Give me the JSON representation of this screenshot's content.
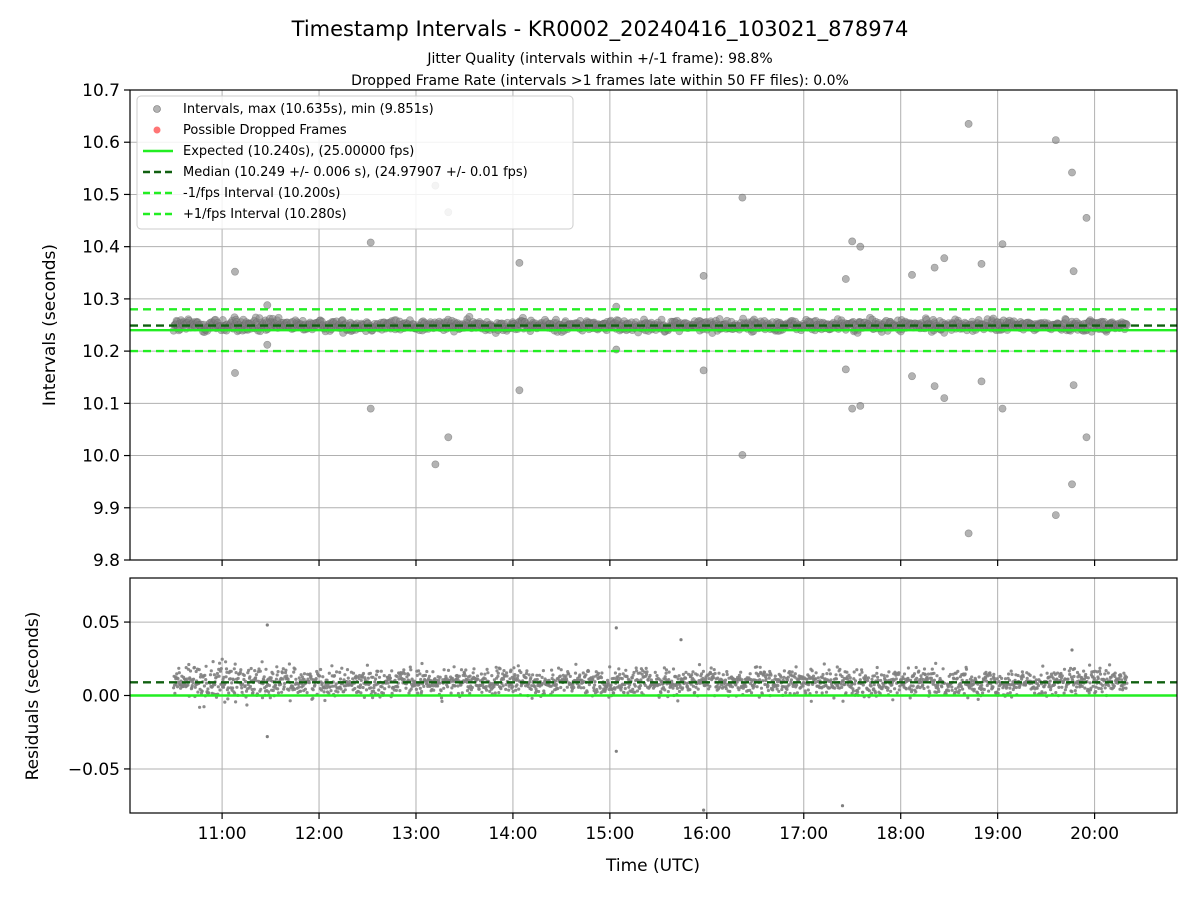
{
  "title": "Timestamp Intervals - KR0002_20240416_103021_878974",
  "subtitle_1": "Jitter Quality (intervals within +/-1 frame): 98.8%",
  "subtitle_2": "Dropped Frame Rate (intervals >1 frames late within 50 FF files): 0.0%",
  "colors": {
    "points": "#808080",
    "dropped": "#ff6666",
    "expected": "#22ee22",
    "median": "#106010",
    "grid": "#b0b0b0"
  },
  "chart_data": [
    {
      "type": "scatter",
      "xlabel": "",
      "ylabel": "Intervals (seconds)",
      "ylim": [
        9.8,
        10.7
      ],
      "y_ticks": [
        "9.8",
        "9.9",
        "10.0",
        "10.1",
        "10.2",
        "10.3",
        "10.4",
        "10.5",
        "10.6",
        "10.7"
      ],
      "x_range_hours": [
        10.05,
        20.85
      ],
      "grid": true,
      "legend_placement": "top-left",
      "legend": [
        "Intervals, max (10.635s), min (9.851s)",
        "Possible Dropped Frames",
        "Expected (10.240s), (25.00000 fps)",
        "Median (10.249 +/- 0.006 s), (24.97907 +/- 0.01 fps)",
        "-1/fps Interval (10.200s)",
        "+1/fps Interval (10.280s)"
      ],
      "reference_lines": {
        "expected": 10.24,
        "median": 10.249,
        "minus_one_fps": 10.2,
        "plus_one_fps": 10.28
      },
      "series": [
        {
          "name": "Intervals, max (10.635s), min (9.851s)",
          "band": {
            "x_start": "10:30",
            "x_end": "20:20",
            "center": 10.249,
            "spread": 0.01
          },
          "outliers": [
            [
              "11:08",
              10.352
            ],
            [
              "11:08",
              10.158
            ],
            [
              "11:28",
              10.288
            ],
            [
              "11:28",
              10.212
            ],
            [
              "12:32",
              10.408
            ],
            [
              "12:32",
              10.09
            ],
            [
              "13:12",
              10.517
            ],
            [
              "13:12",
              9.983
            ],
            [
              "13:20",
              10.466
            ],
            [
              "13:20",
              10.035
            ],
            [
              "14:04",
              10.369
            ],
            [
              "14:04",
              10.125
            ],
            [
              "15:04",
              10.285
            ],
            [
              "15:04",
              10.203
            ],
            [
              "15:58",
              10.344
            ],
            [
              "15:58",
              10.163
            ],
            [
              "16:22",
              10.494
            ],
            [
              "16:22",
              10.001
            ],
            [
              "17:26",
              10.338
            ],
            [
              "17:26",
              10.165
            ],
            [
              "17:30",
              10.41
            ],
            [
              "17:30",
              10.09
            ],
            [
              "17:35",
              10.4
            ],
            [
              "17:35",
              10.095
            ],
            [
              "18:07",
              10.346
            ],
            [
              "18:07",
              10.152
            ],
            [
              "18:21",
              10.36
            ],
            [
              "18:21",
              10.133
            ],
            [
              "18:27",
              10.378
            ],
            [
              "18:27",
              10.11
            ],
            [
              "18:42",
              10.635
            ],
            [
              "18:42",
              9.851
            ],
            [
              "18:50",
              10.367
            ],
            [
              "18:50",
              10.142
            ],
            [
              "19:03",
              10.405
            ],
            [
              "19:03",
              10.09
            ],
            [
              "19:36",
              10.604
            ],
            [
              "19:36",
              9.886
            ],
            [
              "19:46",
              10.542
            ],
            [
              "19:46",
              9.945
            ],
            [
              "19:47",
              10.353
            ],
            [
              "19:47",
              10.135
            ],
            [
              "19:55",
              10.455
            ],
            [
              "19:55",
              10.035
            ]
          ]
        },
        {
          "name": "Possible Dropped Frames",
          "points": []
        }
      ]
    },
    {
      "type": "scatter",
      "xlabel": "Time (UTC)",
      "ylabel": "Residuals (seconds)",
      "ylim": [
        -0.08,
        0.08
      ],
      "y_ticks": [
        "−0.05",
        "0.00",
        "0.05"
      ],
      "x_ticks": [
        "11:00",
        "12:00",
        "13:00",
        "14:00",
        "15:00",
        "16:00",
        "17:00",
        "18:00",
        "19:00",
        "20:00"
      ],
      "grid": true,
      "reference_lines": {
        "zero": 0.0,
        "median_offset": 0.009
      },
      "series": [
        {
          "band": {
            "x_start": "10:30",
            "x_end": "20:20",
            "center": 0.009,
            "spread": 0.009
          },
          "outliers": [
            [
              "11:28",
              0.048
            ],
            [
              "11:28",
              -0.028
            ],
            [
              "15:04",
              0.046
            ],
            [
              "15:04",
              -0.038
            ],
            [
              "15:44",
              0.038
            ],
            [
              "15:58",
              -0.078
            ],
            [
              "17:24",
              -0.075
            ],
            [
              "19:46",
              0.031
            ]
          ]
        }
      ]
    }
  ]
}
